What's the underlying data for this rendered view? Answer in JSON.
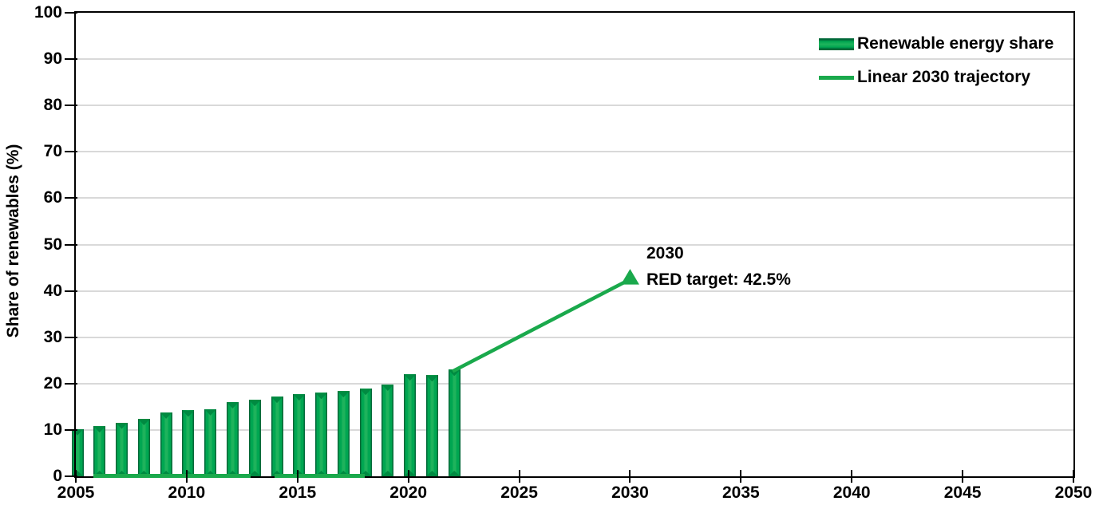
{
  "chart_data": {
    "type": "bar",
    "ylabel": "Share of renewables (%)",
    "xlabel": "",
    "xlim": [
      2005,
      2050
    ],
    "ylim": [
      0,
      100
    ],
    "x_ticks": [
      2005,
      2010,
      2015,
      2020,
      2025,
      2030,
      2035,
      2040,
      2045,
      2050
    ],
    "y_ticks": [
      0,
      10,
      20,
      30,
      40,
      50,
      60,
      70,
      80,
      90,
      100
    ],
    "grid": "horizontal",
    "legend_position": "top-right",
    "categories": [
      2005,
      2006,
      2007,
      2008,
      2009,
      2010,
      2011,
      2012,
      2013,
      2014,
      2015,
      2016,
      2017,
      2018,
      2019,
      2020,
      2021,
      2022
    ],
    "series": [
      {
        "name": "Renewable energy share",
        "type": "bar",
        "values": [
          10.2,
          10.8,
          11.6,
          12.4,
          13.8,
          14.2,
          14.5,
          16.0,
          16.5,
          17.2,
          17.7,
          18.0,
          18.4,
          18.9,
          19.8,
          22.0,
          21.8,
          23.0
        ]
      },
      {
        "name": "Linear 2030 trajectory",
        "type": "line",
        "points": [
          [
            2022,
            23.0
          ],
          [
            2030,
            42.5
          ]
        ],
        "marker": {
          "x": 2030,
          "y": 42.5,
          "shape": "triangle-up"
        }
      }
    ],
    "baseline_segments_years": [
      [
        2005.8,
        2012.9
      ],
      [
        2013.95,
        2018.05
      ]
    ],
    "legend": [
      {
        "label": "Renewable energy share",
        "swatch": "bar"
      },
      {
        "label": "Linear 2030 trajectory",
        "swatch": "line"
      }
    ],
    "annotation": {
      "line1": "2030",
      "line2": "RED target: 42.5%"
    },
    "colors": {
      "bar_main": "#00A651",
      "bar_light": "#1FB35C",
      "bar_dark": "#006838",
      "bar_bevel": "#008A41",
      "line": "#1AA94C",
      "grid": "#D9D9D9",
      "axis": "#000000",
      "text": "#000000",
      "background": "#FFFFFF"
    }
  }
}
